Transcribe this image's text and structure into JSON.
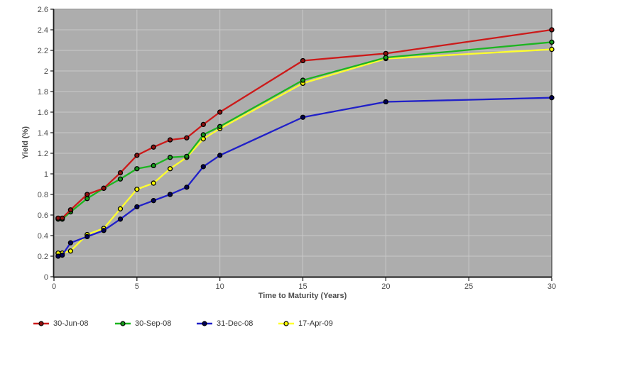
{
  "chart_data": {
    "type": "line",
    "title": "",
    "xlabel": "Time to Maturity (Years)",
    "ylabel": "Yield (%)",
    "xlim": [
      0,
      30
    ],
    "ylim": [
      0,
      2.6
    ],
    "x_ticks": [
      0,
      5,
      10,
      15,
      20,
      25,
      30
    ],
    "y_tick_step": 0.2,
    "grid": true,
    "legend_position": "bottom-left",
    "x": [
      0.25,
      0.5,
      1,
      2,
      3,
      4,
      5,
      6,
      7,
      8,
      9,
      10,
      15,
      20,
      30
    ],
    "series": [
      {
        "name": "30-Jun-08",
        "color": "#cc1a1a",
        "marker_fill": "#8f0f0f",
        "values": [
          0.57,
          0.57,
          0.65,
          0.8,
          0.86,
          1.01,
          1.18,
          1.26,
          1.33,
          1.35,
          1.48,
          1.6,
          2.1,
          2.17,
          2.4
        ]
      },
      {
        "name": "30-Sep-08",
        "color": "#1db521",
        "marker_fill": "#169a1a",
        "values": [
          0.56,
          0.56,
          0.63,
          0.76,
          0.86,
          0.95,
          1.05,
          1.08,
          1.16,
          1.17,
          1.38,
          1.46,
          1.91,
          2.13,
          2.28
        ]
      },
      {
        "name": "31-Dec-08",
        "color": "#2020c8",
        "marker_fill": "#000055",
        "values": [
          0.2,
          0.21,
          0.33,
          0.39,
          0.45,
          0.56,
          0.68,
          0.74,
          0.8,
          0.87,
          1.07,
          1.18,
          1.55,
          1.7,
          1.74
        ]
      },
      {
        "name": "17-Apr-09",
        "color": "#ffff2e",
        "marker_fill": "#ffff00",
        "values": [
          0.23,
          0.23,
          0.25,
          0.41,
          0.47,
          0.66,
          0.85,
          0.91,
          1.05,
          1.16,
          1.34,
          1.44,
          1.88,
          2.12,
          2.21
        ]
      }
    ],
    "draw_order": [
      3,
      2,
      1,
      0
    ]
  },
  "colors": {
    "page_bg": "#ffffff",
    "plot_bg": "#adadad",
    "gridline": "#c9c9c9",
    "axis": "#1a1a1a",
    "plot_border_top": "#9a9a9a",
    "plot_border_right": "#5f5f5f",
    "tick_label": "#4d4d4d",
    "legend_text": "#333333"
  }
}
